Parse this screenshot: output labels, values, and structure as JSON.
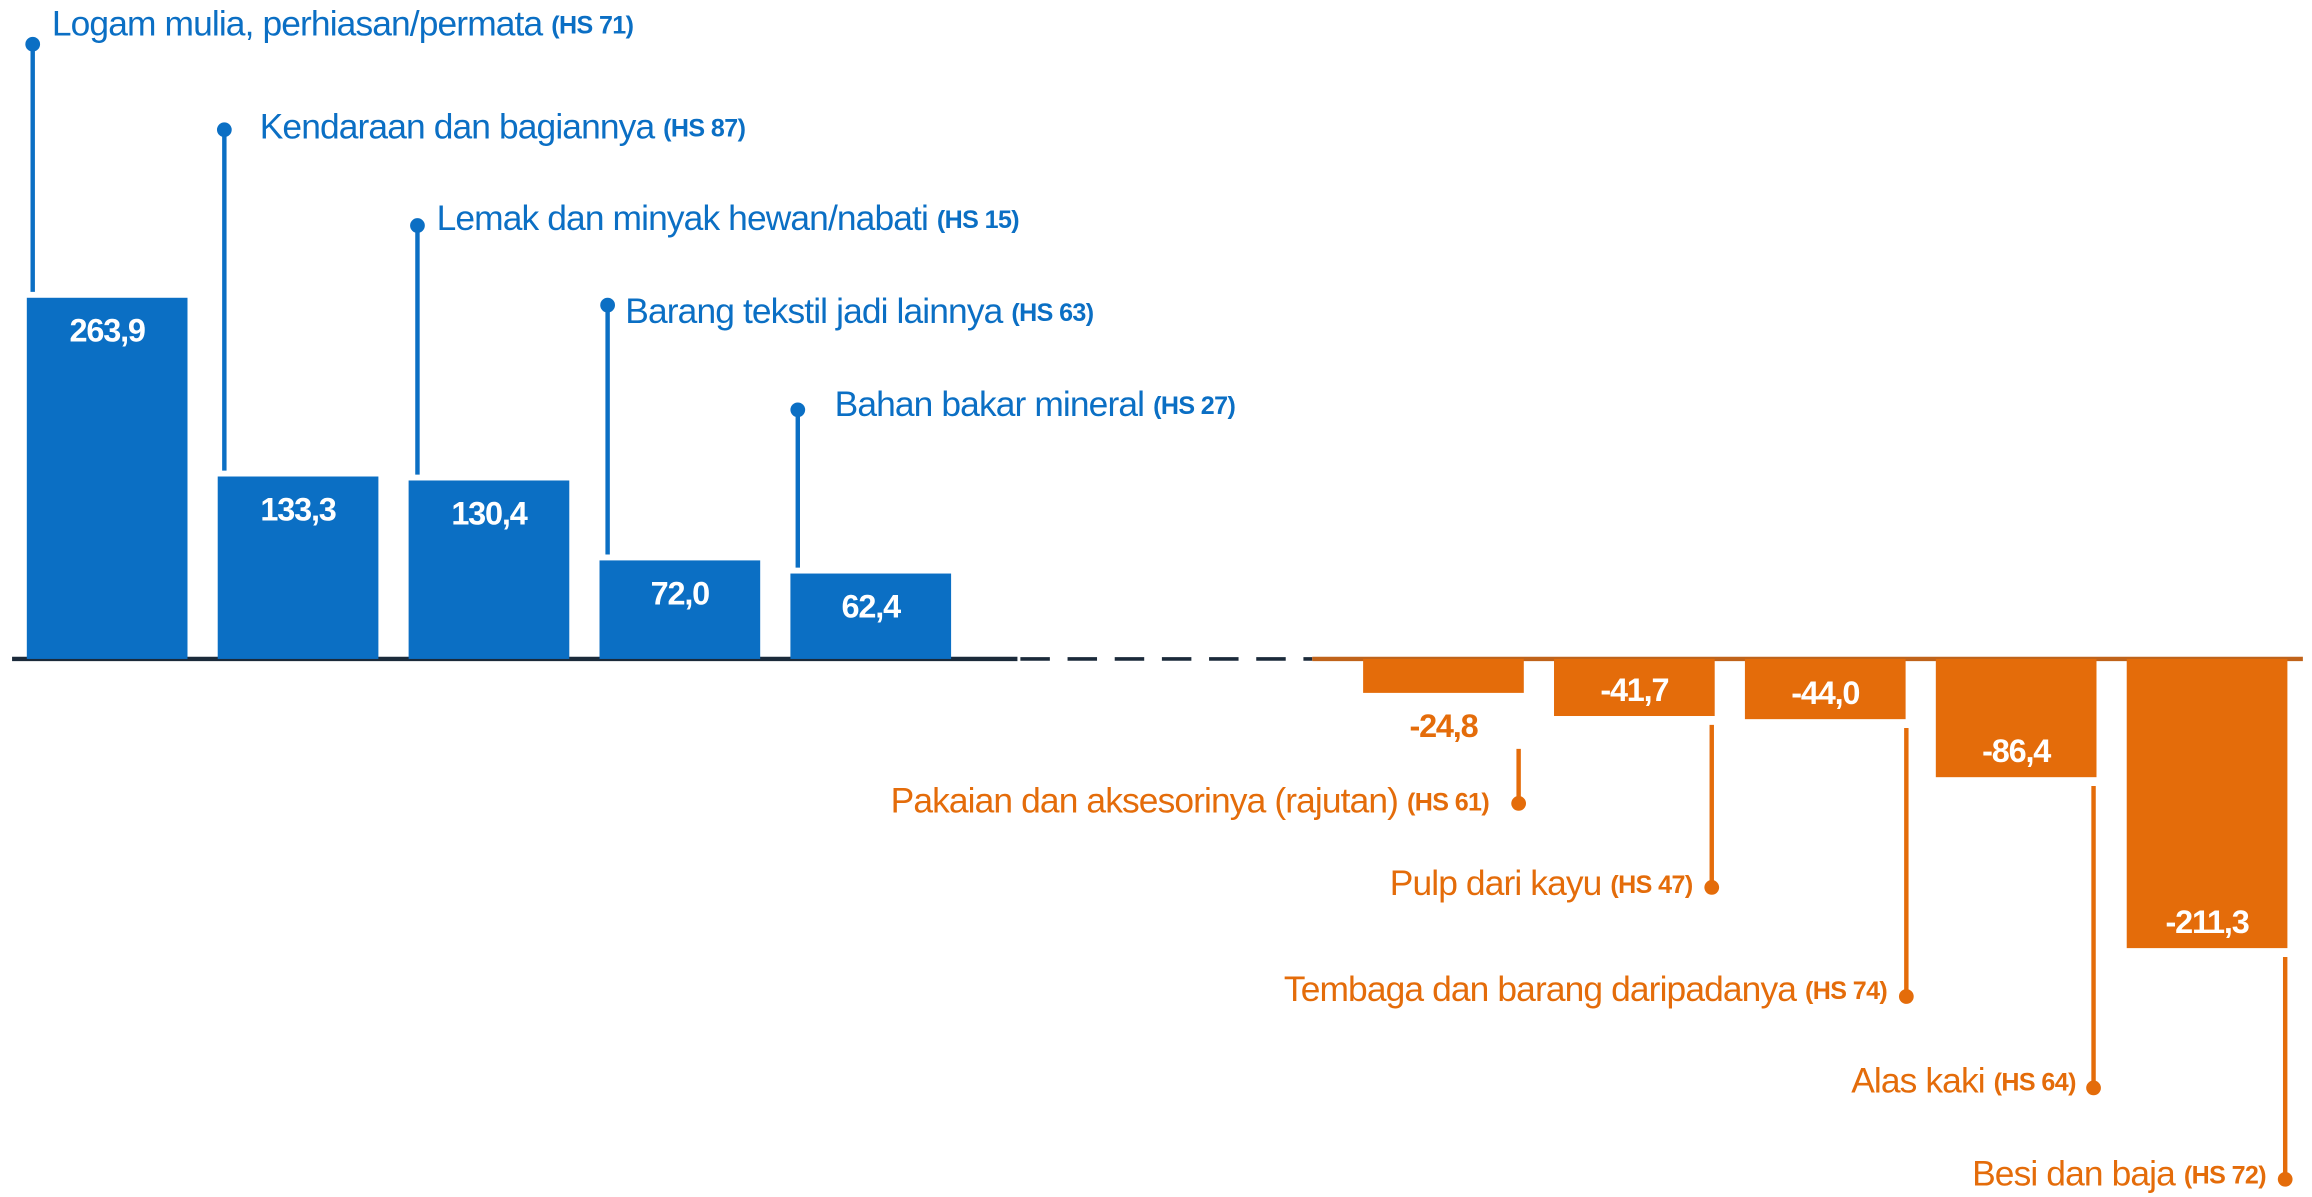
{
  "chart_data": {
    "type": "bar",
    "categories": [
      "Logam mulia, perhiasan/permata",
      "Kendaraan dan bagiannya",
      "Lemak dan minyak hewan/nabati",
      "Barang tekstil jadi lainnya",
      "Bahan bakar mineral",
      "Pakaian dan aksesorinya (rajutan)",
      "Pulp dari kayu",
      "Tembaga dan barang daripadanya",
      "Alas kaki",
      "Besi dan baja"
    ],
    "codes": [
      "(HS 71)",
      "(HS 87)",
      "(HS 15)",
      "(HS 63)",
      "(HS 27)",
      "(HS 61)",
      "(HS 47)",
      "(HS 74)",
      "(HS 64)",
      "(HS 72)"
    ],
    "values": [
      263.9,
      133.3,
      130.4,
      72.0,
      62.4,
      -24.8,
      -41.7,
      -44.0,
      -86.4,
      -211.3
    ],
    "value_labels": [
      "263,9",
      "133,3",
      "130,4",
      "72,0",
      "62,4",
      "-24,8",
      "-41,7",
      "-44,0",
      "-86,4",
      "-211,3"
    ],
    "colors": {
      "positive": "#0b6fc4",
      "negative": "#e46c0a"
    }
  }
}
